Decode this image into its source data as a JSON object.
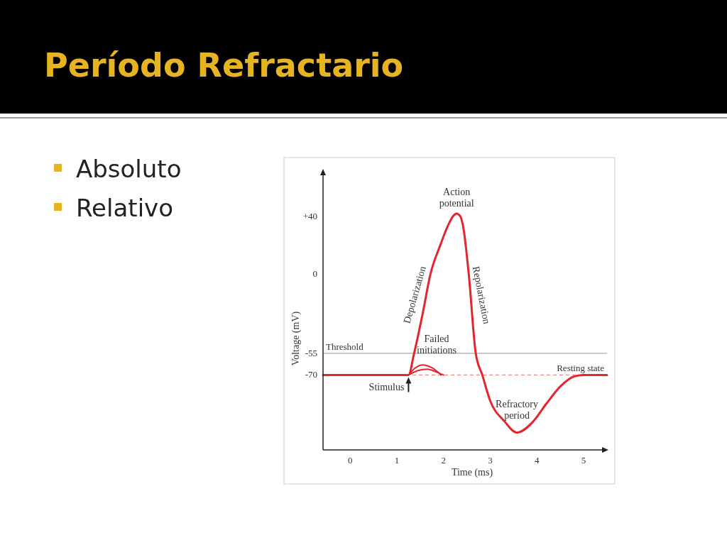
{
  "chart_data": {
    "type": "line",
    "title": "Período Refractario",
    "xlabel": "Time (ms)",
    "ylabel": "Voltage (mV)",
    "xlim": [
      -0.58,
      5.5
    ],
    "xticks": [
      0,
      1,
      2,
      3,
      4,
      5
    ],
    "ylim": [
      -122,
      72
    ],
    "yticks": [
      {
        "value": 40,
        "label": "+40"
      },
      0,
      -55,
      -70
    ],
    "grid": false,
    "marker": "none",
    "line_style": "solid",
    "series": [
      {
        "color": "#e3262d",
        "x": [
          -0.58,
          1.25,
          1.37,
          1.55,
          1.72,
          1.93,
          2.1,
          2.2,
          2.28,
          2.36,
          2.42,
          2.54,
          2.69,
          2.83,
          3.0,
          3.3,
          3.57,
          3.9,
          4.2,
          4.5,
          4.8,
          5.0,
          5.5
        ],
        "values": [
          -70,
          -70,
          -55,
          -28,
          0,
          20,
          34,
          40,
          42,
          40,
          33,
          0,
          -55,
          -70,
          -88,
          -102,
          -110,
          -103,
          -90,
          -78,
          -71,
          -70,
          -70
        ]
      },
      {
        "color": "#e3262d",
        "x": [
          1.25,
          1.4,
          1.55,
          1.75,
          1.95
        ],
        "values": [
          -70,
          -65,
          -63,
          -65,
          -70
        ]
      },
      {
        "color": "#e3262d",
        "x": [
          1.25,
          1.45,
          1.65,
          1.85,
          2.0
        ],
        "values": [
          -70,
          -67,
          -66,
          -68,
          -70
        ]
      }
    ],
    "ref_lines": [
      {
        "axis": "y",
        "value": -55,
        "label": "Threshold",
        "color": "#aaaaaa",
        "line_style": "solid"
      },
      {
        "axis": "y",
        "value": -70,
        "label": "Resting state",
        "color": "#e98a8a",
        "line_style": "dashed"
      }
    ],
    "annotations": [
      {
        "text": "Action potential",
        "x": 2.28,
        "y": 42
      },
      {
        "text": "Depolarization",
        "x": 1.6,
        "y": -15
      },
      {
        "text": "Repolarization",
        "x": 2.62,
        "y": -15
      },
      {
        "text": "Failed initiations",
        "x": 1.7,
        "y": -63
      },
      {
        "text": "Stimulus",
        "x": 1.25,
        "y": -70
      },
      {
        "text": "Refractory period",
        "x": 3.57,
        "y": -110
      },
      "Absoluto",
      "Relativo"
    ]
  }
}
